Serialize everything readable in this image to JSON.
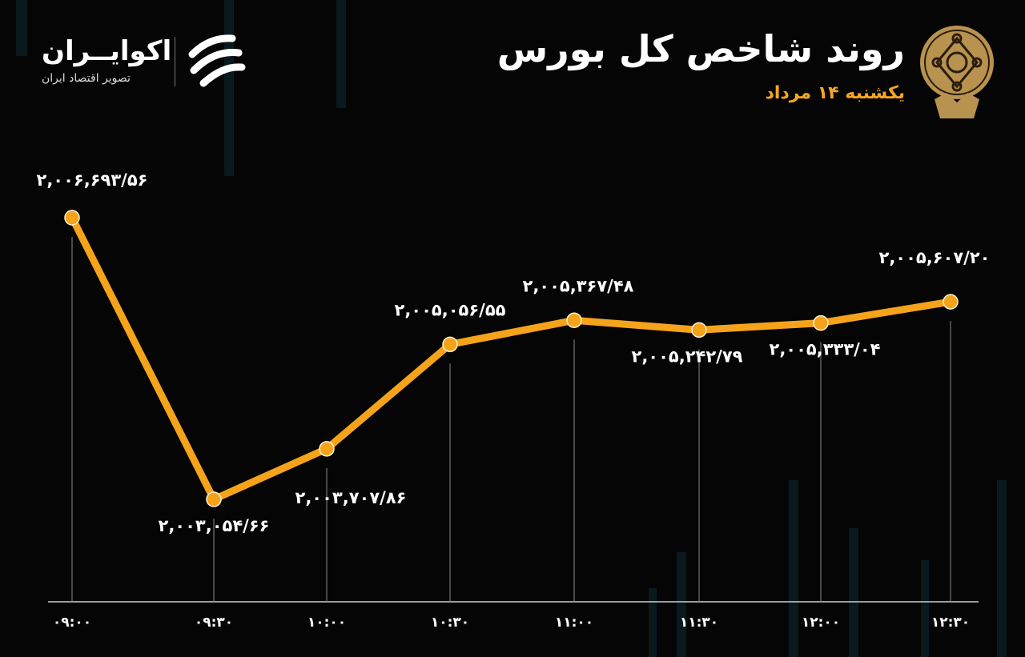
{
  "header": {
    "title": "روند شاخص کل بورس",
    "subtitle": "یکشنبه ۱۴ مرداد"
  },
  "brand": {
    "name": "اکوایــران",
    "tagline": "تصویر اقتصاد ایران"
  },
  "colors": {
    "line": "#f5a31a",
    "background": "#050505",
    "subtitle": "#f5a623"
  },
  "chart_data": {
    "type": "line",
    "title": "روند شاخص کل بورس",
    "categories": [
      "09:00",
      "09:30",
      "10:00",
      "10:30",
      "11:00",
      "11:30",
      "12:00",
      "12:30"
    ],
    "tick_labels": [
      "۰۹:۰۰",
      "۰۹:۳۰",
      "۱۰:۰۰",
      "۱۰:۳۰",
      "۱۱:۰۰",
      "۱۱:۳۰",
      "۱۲:۰۰",
      "۱۲:۳۰"
    ],
    "values": [
      2006693.56,
      2003054.66,
      2003707.86,
      2005056.55,
      2005367.48,
      2005242.79,
      2005333.04,
      2005607.2
    ],
    "data_labels": [
      "۲,۰۰۶,۶۹۳/۵۶",
      "۲,۰۰۳,۰۵۴/۶۶",
      "۲,۰۰۳,۷۰۷/۸۶",
      "۲,۰۰۵,۰۵۶/۵۵",
      "۲,۰۰۵,۳۶۷/۴۸",
      "۲,۰۰۵,۲۴۲/۷۹",
      "۲,۰۰۵,۳۳۳/۰۴",
      "۲,۰۰۵,۶۰۷/۲۰"
    ],
    "grid": false,
    "legend": "none"
  }
}
